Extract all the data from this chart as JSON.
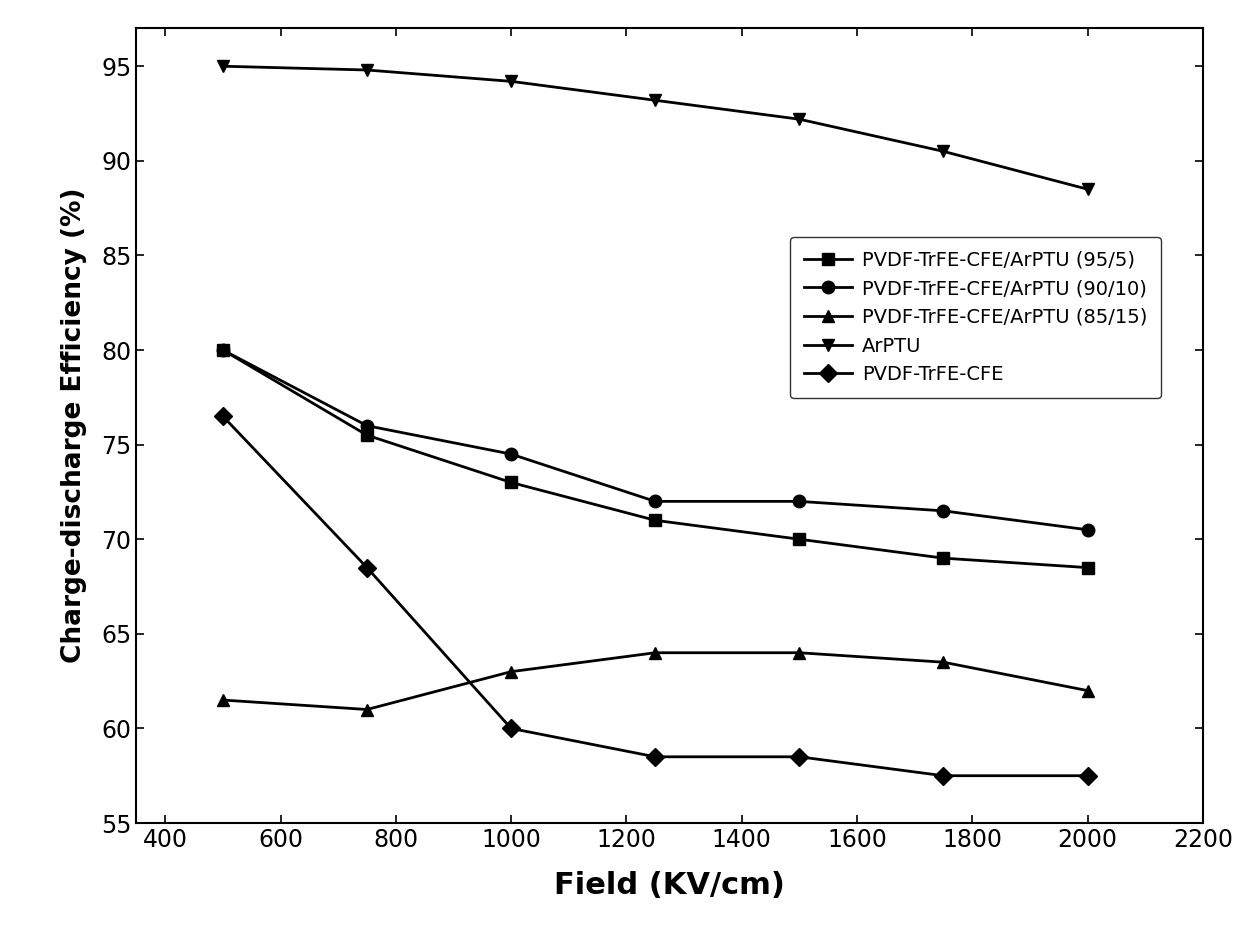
{
  "x_values": [
    500,
    750,
    1000,
    1250,
    1500,
    1750,
    2000
  ],
  "series": {
    "PVDF-TrFE-CFE/ArPTU (95/5)": {
      "y": [
        80.0,
        75.5,
        73.0,
        71.0,
        70.0,
        69.0,
        68.5
      ],
      "marker": "s",
      "markersize": 9,
      "linewidth": 2.0
    },
    "PVDF-TrFE-CFE/ArPTU (90/10)": {
      "y": [
        80.0,
        76.0,
        74.5,
        72.0,
        72.0,
        71.5,
        70.5
      ],
      "marker": "o",
      "markersize": 9,
      "linewidth": 2.0
    },
    "PVDF-TrFE-CFE/ArPTU (85/15)": {
      "y": [
        61.5,
        61.0,
        63.0,
        64.0,
        64.0,
        63.5,
        62.0
      ],
      "marker": "^",
      "markersize": 9,
      "linewidth": 2.0
    },
    "ArPTU": {
      "y": [
        95.0,
        94.8,
        94.2,
        93.2,
        92.2,
        90.5,
        88.5
      ],
      "marker": "v",
      "markersize": 9,
      "linewidth": 2.0
    },
    "PVDF-TrFE-CFE": {
      "y": [
        76.5,
        68.5,
        60.0,
        58.5,
        58.5,
        57.5,
        57.5
      ],
      "marker": "D",
      "markersize": 9,
      "linewidth": 2.0
    }
  },
  "xlabel": "Field (KV/cm)",
  "ylabel": "Charge-discharge Efficiency (%)",
  "xlim": [
    350,
    2200
  ],
  "ylim": [
    55,
    97
  ],
  "yticks": [
    55,
    60,
    65,
    70,
    75,
    80,
    85,
    90,
    95
  ],
  "xticks": [
    400,
    600,
    800,
    1000,
    1200,
    1400,
    1600,
    1800,
    2000,
    2200
  ],
  "color": "#000000",
  "background_color": "#ffffff",
  "xlabel_fontsize": 22,
  "ylabel_fontsize": 19,
  "tick_fontsize": 17,
  "legend_fontsize": 14
}
